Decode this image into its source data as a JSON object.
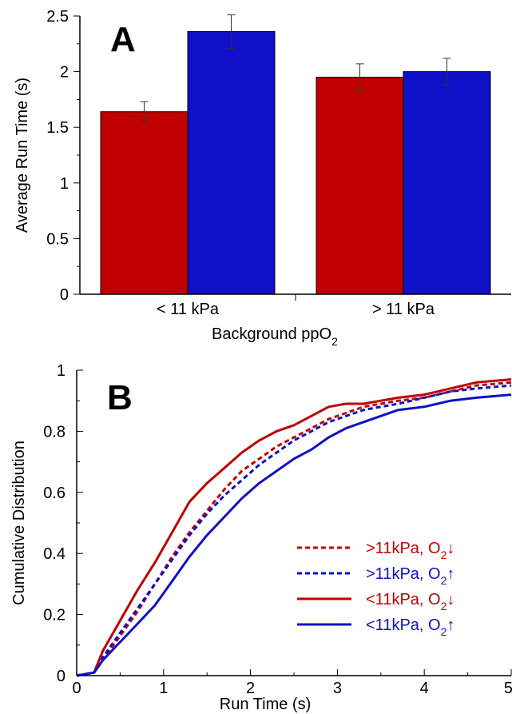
{
  "colors": {
    "red": "#c00000",
    "blue": "#1010c8",
    "axis": "#000000"
  },
  "chart_data": [
    {
      "type": "bar",
      "panel_label": "A",
      "categories": [
        "< 11 kPa",
        "> 11 kPa"
      ],
      "series": [
        {
          "color": "#c00000",
          "values": [
            1.64,
            1.95
          ],
          "errors": [
            0.09,
            0.12
          ]
        },
        {
          "color": "#1010c8",
          "values": [
            2.36,
            2.0
          ],
          "errors": [
            0.15,
            0.12
          ]
        }
      ],
      "ylim": [
        0,
        2.5
      ],
      "yticks": [
        0,
        0.5,
        1,
        1.5,
        2,
        2.5
      ],
      "ytick_labels": [
        "0",
        "0.5",
        "1",
        "1.5",
        "2",
        "2.5"
      ],
      "ylabel": "Average Run Time (s)",
      "xlabel": "Background ppO",
      "xlabel_sub": "2",
      "grid": false
    },
    {
      "type": "line",
      "panel_label": "B",
      "xlim": [
        0,
        5
      ],
      "ylim": [
        0,
        1
      ],
      "xticks": [
        0,
        1,
        2,
        3,
        4,
        5
      ],
      "xtick_labels": [
        "0",
        "1",
        "2",
        "3",
        "4",
        "5"
      ],
      "yticks": [
        0,
        0.2,
        0.4,
        0.6,
        0.8,
        1
      ],
      "ytick_labels": [
        "0",
        "0.2",
        "0.4",
        "0.6",
        "0.8",
        "1"
      ],
      "xlabel": "Run Time (s)",
      "ylabel": "Cumulative Distribution",
      "grid": false,
      "legend_position": "center-right",
      "series": [
        {
          "name": ">11kPa, O",
          "name_sub": "2",
          "name_arrow": "↓",
          "color": "#c00000",
          "dash": "dashed",
          "points": [
            [
              0,
              0
            ],
            [
              0.2,
              0.01
            ],
            [
              0.3,
              0.05
            ],
            [
              0.5,
              0.13
            ],
            [
              0.7,
              0.21
            ],
            [
              0.9,
              0.3
            ],
            [
              1.1,
              0.39
            ],
            [
              1.3,
              0.47
            ],
            [
              1.5,
              0.54
            ],
            [
              1.7,
              0.61
            ],
            [
              1.9,
              0.67
            ],
            [
              2.1,
              0.71
            ],
            [
              2.3,
              0.75
            ],
            [
              2.5,
              0.78
            ],
            [
              2.7,
              0.81
            ],
            [
              2.9,
              0.84
            ],
            [
              3.1,
              0.86
            ],
            [
              3.3,
              0.88
            ],
            [
              3.5,
              0.89
            ],
            [
              3.7,
              0.9
            ],
            [
              4.0,
              0.91
            ],
            [
              4.3,
              0.93
            ],
            [
              4.6,
              0.95
            ],
            [
              5.0,
              0.96
            ]
          ]
        },
        {
          "name": ">11kPa, O",
          "name_sub": "2",
          "name_arrow": "↑",
          "color": "#1010c8",
          "dash": "dashed",
          "points": [
            [
              0,
              0
            ],
            [
              0.2,
              0.01
            ],
            [
              0.3,
              0.06
            ],
            [
              0.5,
              0.14
            ],
            [
              0.7,
              0.22
            ],
            [
              0.9,
              0.3
            ],
            [
              1.1,
              0.38
            ],
            [
              1.3,
              0.46
            ],
            [
              1.5,
              0.53
            ],
            [
              1.7,
              0.59
            ],
            [
              1.9,
              0.64
            ],
            [
              2.1,
              0.69
            ],
            [
              2.3,
              0.73
            ],
            [
              2.5,
              0.77
            ],
            [
              2.7,
              0.8
            ],
            [
              2.9,
              0.83
            ],
            [
              3.1,
              0.85
            ],
            [
              3.3,
              0.87
            ],
            [
              3.5,
              0.88
            ],
            [
              3.7,
              0.89
            ],
            [
              4.0,
              0.91
            ],
            [
              4.3,
              0.93
            ],
            [
              4.6,
              0.94
            ],
            [
              5.0,
              0.95
            ]
          ]
        },
        {
          "name": "<11kPa, O",
          "name_sub": "2",
          "name_arrow": "↓",
          "color": "#c00000",
          "dash": "solid",
          "points": [
            [
              0,
              0
            ],
            [
              0.2,
              0.01
            ],
            [
              0.3,
              0.08
            ],
            [
              0.5,
              0.18
            ],
            [
              0.7,
              0.28
            ],
            [
              0.9,
              0.37
            ],
            [
              1.1,
              0.47
            ],
            [
              1.3,
              0.57
            ],
            [
              1.5,
              0.63
            ],
            [
              1.7,
              0.68
            ],
            [
              1.9,
              0.73
            ],
            [
              2.1,
              0.77
            ],
            [
              2.3,
              0.8
            ],
            [
              2.5,
              0.82
            ],
            [
              2.7,
              0.85
            ],
            [
              2.9,
              0.88
            ],
            [
              3.1,
              0.89
            ],
            [
              3.3,
              0.89
            ],
            [
              3.5,
              0.9
            ],
            [
              3.7,
              0.91
            ],
            [
              4.0,
              0.92
            ],
            [
              4.3,
              0.94
            ],
            [
              4.6,
              0.96
            ],
            [
              5.0,
              0.97
            ]
          ]
        },
        {
          "name": "<11kPa, O",
          "name_sub": "2",
          "name_arrow": "↑",
          "color": "#1010c8",
          "dash": "solid",
          "points": [
            [
              0,
              0
            ],
            [
              0.2,
              0.01
            ],
            [
              0.3,
              0.05
            ],
            [
              0.5,
              0.11
            ],
            [
              0.7,
              0.17
            ],
            [
              0.9,
              0.23
            ],
            [
              1.1,
              0.31
            ],
            [
              1.3,
              0.39
            ],
            [
              1.5,
              0.46
            ],
            [
              1.7,
              0.52
            ],
            [
              1.9,
              0.58
            ],
            [
              2.1,
              0.63
            ],
            [
              2.3,
              0.67
            ],
            [
              2.5,
              0.71
            ],
            [
              2.7,
              0.74
            ],
            [
              2.9,
              0.78
            ],
            [
              3.1,
              0.81
            ],
            [
              3.3,
              0.83
            ],
            [
              3.5,
              0.85
            ],
            [
              3.7,
              0.87
            ],
            [
              4.0,
              0.88
            ],
            [
              4.3,
              0.9
            ],
            [
              4.6,
              0.91
            ],
            [
              5.0,
              0.92
            ]
          ]
        }
      ]
    }
  ]
}
